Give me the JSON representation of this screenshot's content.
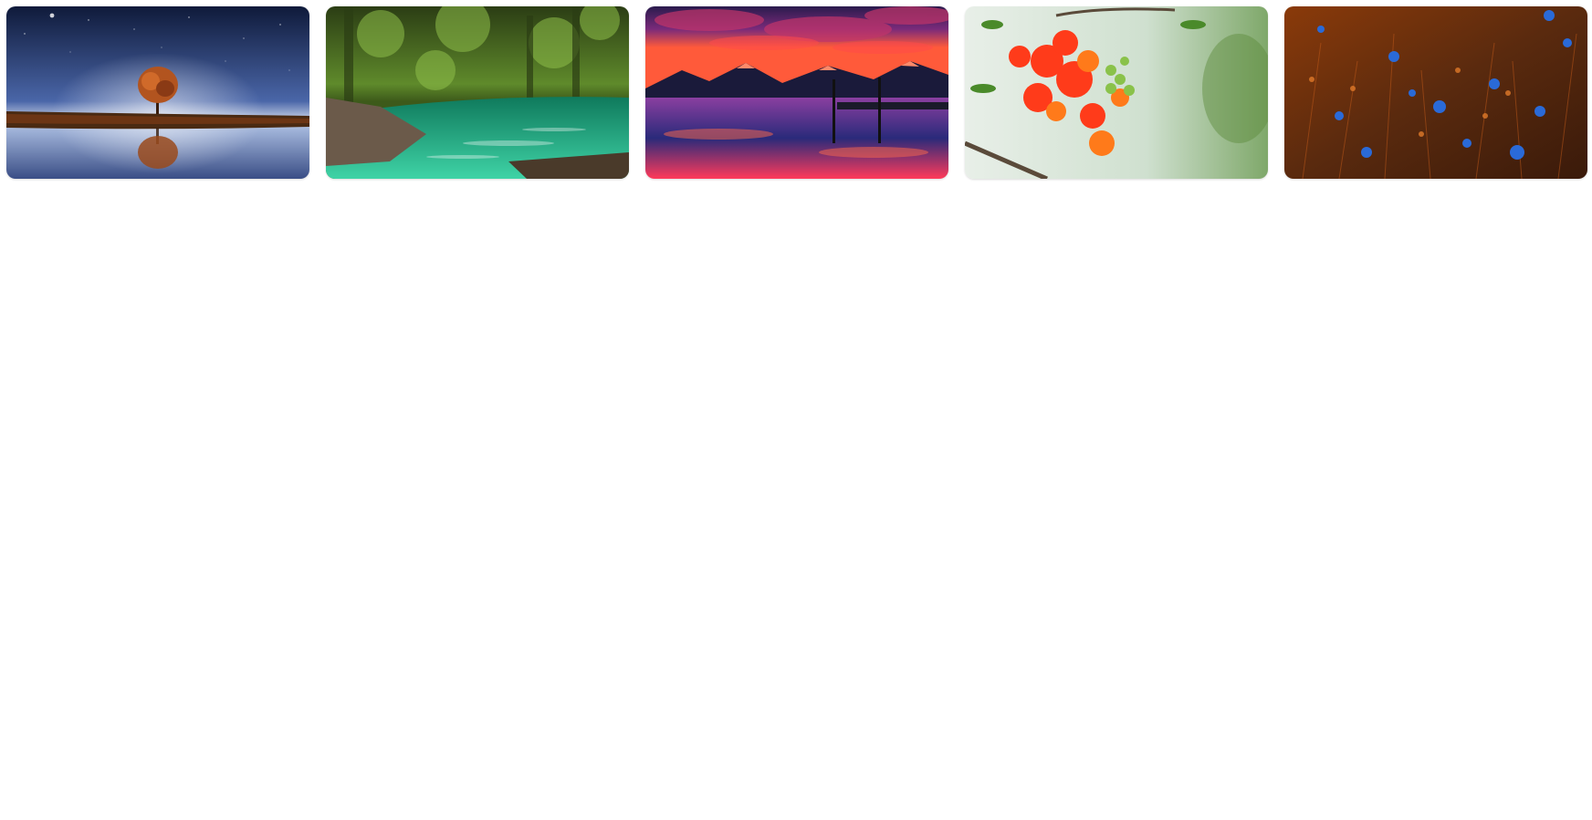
{
  "gallery": {
    "items": [
      {
        "name": "tree-reflection-night",
        "palette": [
          "#0f1a3a",
          "#5d7bb5",
          "#c9d3e8",
          "#5b2f1a",
          "#b2541f"
        ]
      },
      {
        "name": "forest-river",
        "palette": [
          "#2b3d14",
          "#5f8a2b",
          "#0f7a5c",
          "#3fd3a6",
          "#6b5a4a"
        ]
      },
      {
        "name": "mountain-lake-sunset",
        "palette": [
          "#2a1b4d",
          "#7a2a7a",
          "#ff5a3a",
          "#1a1a3a",
          "#8a3fa0"
        ]
      },
      {
        "name": "red-flowers-branch",
        "palette": [
          "#e8efe8",
          "#7fa86a",
          "#ff3b1a",
          "#ff7a1a",
          "#5a7a3a"
        ]
      },
      {
        "name": "blue-wildflowers",
        "palette": [
          "#3a1a0a",
          "#8a3a0a",
          "#c25a1a",
          "#1e5fd0",
          "#2a6ad8"
        ]
      }
    ]
  }
}
